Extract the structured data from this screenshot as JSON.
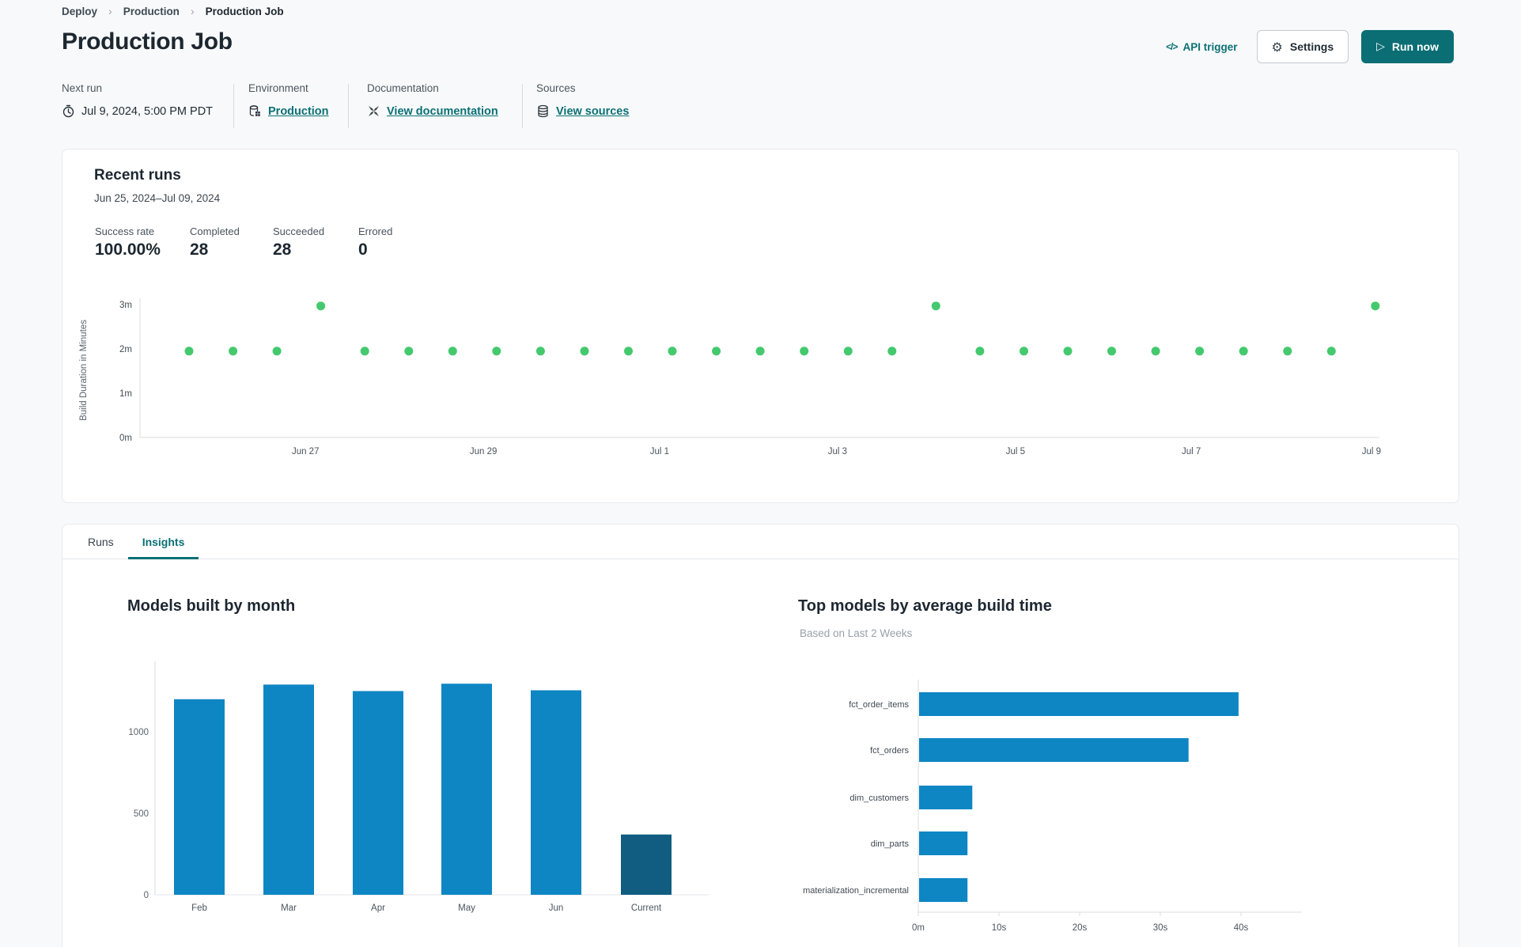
{
  "colors": {
    "accent_teal": "#0b7075",
    "run_button": "#0a6e74",
    "dot_green": "#44c96e",
    "bar_blue": "#0e86c4",
    "bar_navy": "#115d81"
  },
  "breadcrumb": {
    "items": [
      "Deploy",
      "Production",
      "Production Job"
    ]
  },
  "header": {
    "title": "Production Job",
    "api_trigger": "API trigger",
    "settings": "Settings",
    "run_now": "Run now"
  },
  "meta": {
    "next_run": {
      "label": "Next run",
      "value": "Jul 9, 2024, 5:00 PM PDT"
    },
    "environment": {
      "label": "Environment",
      "value": "Production"
    },
    "documentation": {
      "label": "Documentation",
      "value": "View documentation"
    },
    "sources": {
      "label": "Sources",
      "value": "View sources"
    }
  },
  "recent_runs": {
    "title": "Recent runs",
    "date_range": "Jun 25, 2024–Jul 09, 2024",
    "stats": [
      {
        "label": "Success rate",
        "value": "100.00%"
      },
      {
        "label": "Completed",
        "value": "28"
      },
      {
        "label": "Succeeded",
        "value": "28"
      },
      {
        "label": "Errored",
        "value": "0"
      }
    ]
  },
  "tabs": [
    {
      "label": "Runs",
      "active": false
    },
    {
      "label": "Insights",
      "active": true
    }
  ],
  "chart_data": [
    {
      "id": "run_durations",
      "type": "scatter",
      "title": "Recent runs build duration",
      "ylabel": "Build Duration in Minutes",
      "y_ticks": [
        "0m",
        "1m",
        "2m",
        "3m"
      ],
      "ylim": [
        0,
        3.2
      ],
      "x_ticks": [
        {
          "label": "Jun 27",
          "at": 2.65
        },
        {
          "label": "Jun 29",
          "at": 6.7
        },
        {
          "label": "Jul 1",
          "at": 10.71
        },
        {
          "label": "Jul 3",
          "at": 14.76
        },
        {
          "label": "Jul 5",
          "at": 18.81
        },
        {
          "label": "Jul 7",
          "at": 22.81
        },
        {
          "label": "Jul 9",
          "at": 26.91
        }
      ],
      "durations_minutes": [
        1.95,
        1.95,
        1.95,
        2.97,
        1.95,
        1.95,
        1.95,
        1.95,
        1.95,
        1.95,
        1.95,
        1.95,
        1.95,
        1.95,
        1.95,
        1.95,
        1.95,
        2.97,
        1.95,
        1.95,
        1.95,
        1.95,
        1.95,
        1.95,
        1.95,
        1.95,
        1.95,
        2.97
      ],
      "point_color": "#44c96e"
    },
    {
      "id": "models_by_month",
      "type": "bar",
      "title": "Models built by month",
      "categories": [
        "Feb",
        "Mar",
        "Apr",
        "May",
        "Jun",
        "Current"
      ],
      "values": [
        1200,
        1290,
        1250,
        1295,
        1255,
        370
      ],
      "y_ticks": [
        0,
        500,
        1000
      ],
      "ylim": [
        0,
        1430
      ],
      "bar_color": "#0e86c4",
      "current_bar_color": "#115d81"
    },
    {
      "id": "top_models_by_build_time",
      "type": "bar-horizontal",
      "title": "Top models by average build time",
      "subtitle": "Based on Last 2 Weeks",
      "categories": [
        "fct_order_items",
        "fct_orders",
        "dim_customers",
        "dim_parts",
        "materialization_incremental"
      ],
      "values_seconds": [
        39.6,
        33.4,
        6.6,
        6.0,
        6.0
      ],
      "x_ticks": [
        "0m",
        "10s",
        "20s",
        "30s",
        "40s"
      ],
      "xlim": [
        0,
        47
      ],
      "bar_color": "#0e86c4"
    }
  ]
}
